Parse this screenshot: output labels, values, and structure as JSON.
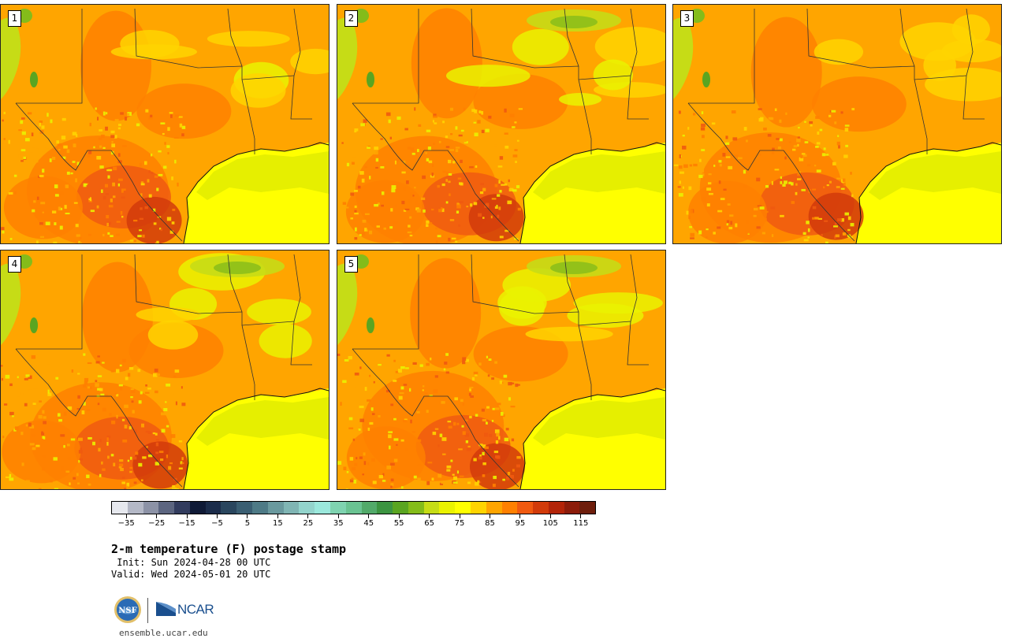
{
  "panels": [
    {
      "label": "1"
    },
    {
      "label": "2"
    },
    {
      "label": "3"
    },
    {
      "label": "4"
    },
    {
      "label": "5"
    }
  ],
  "colorbar": {
    "tick_labels": [
      "−35",
      "−25",
      "−15",
      "−5",
      "5",
      "15",
      "25",
      "35",
      "45",
      "55",
      "65",
      "75",
      "85",
      "95",
      "105",
      "115"
    ],
    "range": [
      -40,
      120
    ],
    "colors": [
      "#e6e8ee",
      "#b4b8c6",
      "#8c92a6",
      "#5c6580",
      "#323c5e",
      "#0f1a36",
      "#1b2c4a",
      "#2a465e",
      "#3a5e72",
      "#4e7a86",
      "#6a999e",
      "#80b5b4",
      "#93d4cc",
      "#9be8dc",
      "#7fd3b0",
      "#6ac392",
      "#52aa6a",
      "#3c9441",
      "#5aa521",
      "#84bc1a",
      "#c6dc16",
      "#eaf200",
      "#ffff00",
      "#ffd400",
      "#ffa500",
      "#ff8000",
      "#f05a10",
      "#d23b0a",
      "#b32408",
      "#8c1c0a",
      "#6e1e0c"
    ]
  },
  "title": "2-m temperature (F) postage stamp",
  "init_line": " Init: Sun 2024-04-28 00 UTC",
  "valid_line": "Valid: Wed 2024-05-01 20 UTC",
  "logos": {
    "nsf": "NSF",
    "ncar": "NCAR"
  },
  "url": "ensemble.ucar.edu"
}
